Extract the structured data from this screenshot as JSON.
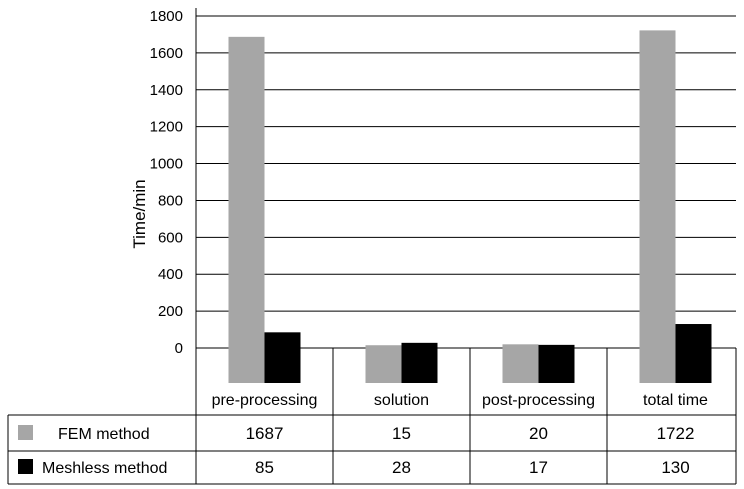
{
  "chart_data": {
    "type": "bar",
    "ylabel": "Time/min",
    "ylim": [
      0,
      1800
    ],
    "yticks": [
      "0",
      "200",
      "400",
      "600",
      "800",
      "1000",
      "1200",
      "1400",
      "1600",
      "1800"
    ],
    "grid": true,
    "categories": [
      "pre-processing",
      "solution",
      "post-processing",
      "total time"
    ],
    "series": [
      {
        "name": "FEM method",
        "color": "#a6a6a6",
        "values": [
          "1687",
          "15",
          "20",
          "1722"
        ]
      },
      {
        "name": "Meshless method",
        "color": "#000000",
        "values": [
          "85",
          "28",
          "17",
          "130"
        ]
      }
    ],
    "data_table": true
  }
}
